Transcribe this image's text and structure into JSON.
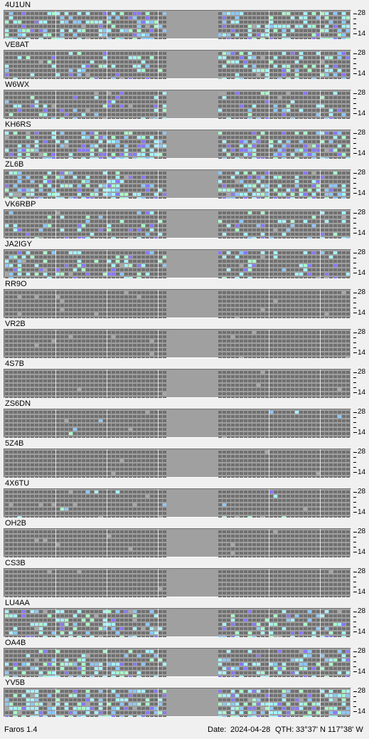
{
  "app": {
    "name_version": "Faros 1.4"
  },
  "status": {
    "date_label": "Date:",
    "date": "2024-04-28",
    "qth_label": "QTH:",
    "qth": "33°37' N  117°38' W"
  },
  "axis": {
    "top_label": "28",
    "bottom_label": "14"
  },
  "colors": {
    "panel_bg": "#a0a0a0",
    "cell_empty": "#707070",
    "cell_cyan": "#a6f3ff",
    "cell_blue": "#8cc8ff",
    "cell_green": "#a8ffc8",
    "cell_purple": "#8878ff",
    "cell_gray": "#a8a8a8",
    "divider": "#e8e8e8"
  },
  "stations": [
    {
      "call": "4U1UN"
    },
    {
      "call": "VE8AT"
    },
    {
      "call": "W6WX"
    },
    {
      "call": "KH6RS"
    },
    {
      "call": "ZL6B"
    },
    {
      "call": "VK6RBP"
    },
    {
      "call": "JA2IGY"
    },
    {
      "call": "RR9O"
    },
    {
      "call": "VR2B"
    },
    {
      "call": "4S7B"
    },
    {
      "call": "ZS6DN"
    },
    {
      "call": "5Z4B"
    },
    {
      "call": "4X6TU"
    },
    {
      "call": "OH2B"
    },
    {
      "call": "CS3B"
    },
    {
      "call": "LU4AA"
    },
    {
      "call": "OA4B"
    },
    {
      "call": "YV5B"
    }
  ]
}
